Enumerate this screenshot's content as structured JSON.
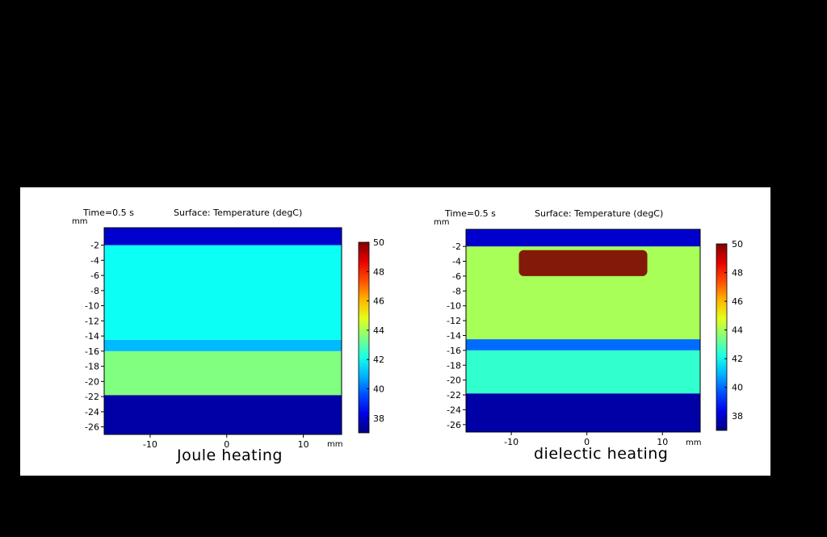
{
  "chart_data": [
    {
      "type": "heatmap",
      "time_label": "Time=0.5 s",
      "title": "Surface: Temperature (degC)",
      "caption": "Joule heating",
      "x_unit": "mm",
      "y_unit": "mm",
      "xlim": [
        -16,
        15
      ],
      "ylim": [
        -27,
        0.3
      ],
      "x_ticks": [
        "-10",
        "0",
        "10"
      ],
      "y_ticks": [
        "-2",
        "-4",
        "-6",
        "-8",
        "-10",
        "-12",
        "-14",
        "-16",
        "-18",
        "-20",
        "-22",
        "-24",
        "-26"
      ],
      "colorbar": {
        "min": 37,
        "max": 50,
        "ticks": [
          "38",
          "40",
          "42",
          "44",
          "46",
          "48",
          "50"
        ]
      },
      "regions": [
        {
          "name": "",
          "y_range": [
            -27,
            -21.8
          ],
          "temp_degC": 37.5
        },
        {
          "name": "",
          "y_range": [
            -21.8,
            -16
          ],
          "temp_degC": 43.5
        },
        {
          "name": "",
          "y_range": [
            -16,
            -14.5
          ],
          "temp_degC": 41
        },
        {
          "name": "",
          "y_range": [
            -14.5,
            -2
          ],
          "temp_degC": 42
        },
        {
          "name": "",
          "y_range": [
            -2,
            0.3
          ],
          "temp_degC": 38
        }
      ]
    },
    {
      "type": "heatmap",
      "time_label": "Time=0.5 s",
      "title": "Surface: Temperature (degC)",
      "caption": "dielectic heating",
      "x_unit": "mm",
      "y_unit": "mm",
      "xlim": [
        -16,
        15
      ],
      "ylim": [
        -27,
        0.3
      ],
      "x_ticks": [
        "-10",
        "0",
        "10"
      ],
      "y_ticks": [
        "-2",
        "-4",
        "-6",
        "-8",
        "-10",
        "-12",
        "-14",
        "-16",
        "-18",
        "-20",
        "-22",
        "-24",
        "-26"
      ],
      "colorbar": {
        "min": 37,
        "max": 50,
        "ticks": [
          "38",
          "40",
          "42",
          "44",
          "46",
          "48",
          "50"
        ]
      },
      "regions": [
        {
          "name": "",
          "y_range": [
            -27,
            -21.8
          ],
          "temp_degC": 37.5
        },
        {
          "name": "",
          "y_range": [
            -21.8,
            -16
          ],
          "temp_degC": 42.5
        },
        {
          "name": "",
          "y_range": [
            -16,
            -14.5
          ],
          "temp_degC": 40
        },
        {
          "name": "",
          "y_range": [
            -14.5,
            -2
          ],
          "temp_degC": 44
        },
        {
          "name": "",
          "y_range": [
            -2,
            0.3
          ],
          "temp_degC": 38
        }
      ],
      "hot_spot": {
        "x_range": [
          -9,
          8
        ],
        "y_range": [
          -6,
          -2.5
        ],
        "temp_degC": 50
      }
    }
  ]
}
